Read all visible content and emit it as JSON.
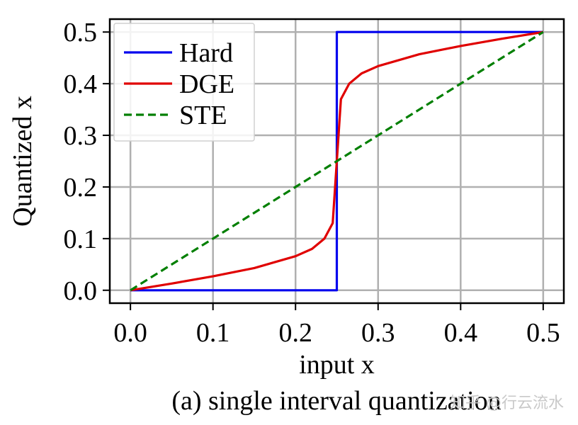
{
  "chart_data": {
    "type": "line",
    "xlabel": "input x",
    "ylabel": "Quantized x",
    "caption": "(a) single interval quantization",
    "xlim": [
      -0.025,
      0.525
    ],
    "ylim": [
      -0.025,
      0.525
    ],
    "x_ticks": [
      0.0,
      0.1,
      0.2,
      0.3,
      0.4,
      0.5
    ],
    "y_ticks": [
      0.0,
      0.1,
      0.2,
      0.3,
      0.4,
      0.5
    ],
    "x_tick_labels": [
      "0.0",
      "0.1",
      "0.2",
      "0.3",
      "0.4",
      "0.5"
    ],
    "y_tick_labels": [
      "0.0",
      "0.1",
      "0.2",
      "0.3",
      "0.4",
      "0.5"
    ],
    "grid": true,
    "legend_position": "top-left",
    "series": [
      {
        "name": "Hard",
        "color": "#0000ee",
        "dash": "solid",
        "x": [
          0.0,
          0.25,
          0.25,
          0.5
        ],
        "y": [
          0.0,
          0.0,
          0.5,
          0.5
        ]
      },
      {
        "name": "DGE",
        "color": "#e00000",
        "dash": "solid",
        "x": [
          0.0,
          0.05,
          0.1,
          0.15,
          0.2,
          0.22,
          0.235,
          0.245,
          0.25,
          0.255,
          0.265,
          0.28,
          0.3,
          0.35,
          0.4,
          0.45,
          0.5
        ],
        "y": [
          0.0,
          0.013,
          0.027,
          0.043,
          0.066,
          0.08,
          0.1,
          0.13,
          0.25,
          0.37,
          0.4,
          0.42,
          0.434,
          0.457,
          0.473,
          0.487,
          0.5
        ]
      },
      {
        "name": "STE",
        "color": "#007f00",
        "dash": "dashed",
        "x": [
          0.0,
          0.5
        ],
        "y": [
          0.0,
          0.5
        ]
      }
    ]
  },
  "watermark": "知乎 @行云流水"
}
